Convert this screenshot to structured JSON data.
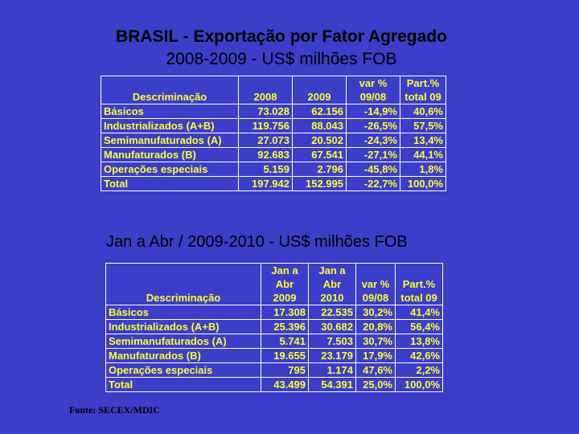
{
  "title": "BRASIL - Exportação por Fator Agregado",
  "subtitle": "2008-2009 - US$ milhões FOB",
  "table1": {
    "headers": [
      "Descriminação",
      "2008",
      "2009",
      "var %",
      "09/08",
      "Part.%",
      "total 09"
    ],
    "rows": [
      [
        "Básicos",
        "73.028",
        "62.156",
        "-14,9%",
        "40,6%"
      ],
      [
        "Industrializados (A+B)",
        "119.756",
        "88.043",
        "-26,5%",
        "57,5%"
      ],
      [
        "Semimanufaturados (A)",
        "27.073",
        "20.502",
        "-24,3%",
        "13,4%"
      ],
      [
        "Manufaturados (B)",
        "92.683",
        "67.541",
        "-27,1%",
        "44,1%"
      ],
      [
        "Operações especiais",
        "5.159",
        "2.796",
        "-45,8%",
        "1,8%"
      ],
      [
        "Total",
        "197.942",
        "152.995",
        "-22,7%",
        "100,0%"
      ]
    ]
  },
  "subtitle2": "Jan a Abr / 2009-2010 - US$ milhões FOB",
  "table2": {
    "headers": [
      "Descriminação",
      "Jan a",
      "Abr",
      "2009",
      "Jan a",
      "Abr",
      "2010",
      "var %",
      "09/08",
      "Part.%",
      "total 09"
    ],
    "rows": [
      [
        "Básicos",
        "17.308",
        "22.535",
        "30,2%",
        "41,4%"
      ],
      [
        "Industrializados (A+B)",
        "25.396",
        "30.682",
        "20,8%",
        "56,4%"
      ],
      [
        "Semimanufaturados (A)",
        "5.741",
        "7.503",
        "30,7%",
        "13,8%"
      ],
      [
        "Manufaturados (B)",
        "19.655",
        "23.179",
        "17,9%",
        "42,6%"
      ],
      [
        "Operações especiais",
        "795",
        "1.174",
        "47,6%",
        "2,2%"
      ],
      [
        "Total",
        "43.499",
        "54.391",
        "25,0%",
        "100,0%"
      ]
    ]
  },
  "source": "Fonte: SECEX/MDIC",
  "colors": {
    "background": "#3a3ec8",
    "table_text": "#ffff33",
    "grid": "#ffffff"
  }
}
